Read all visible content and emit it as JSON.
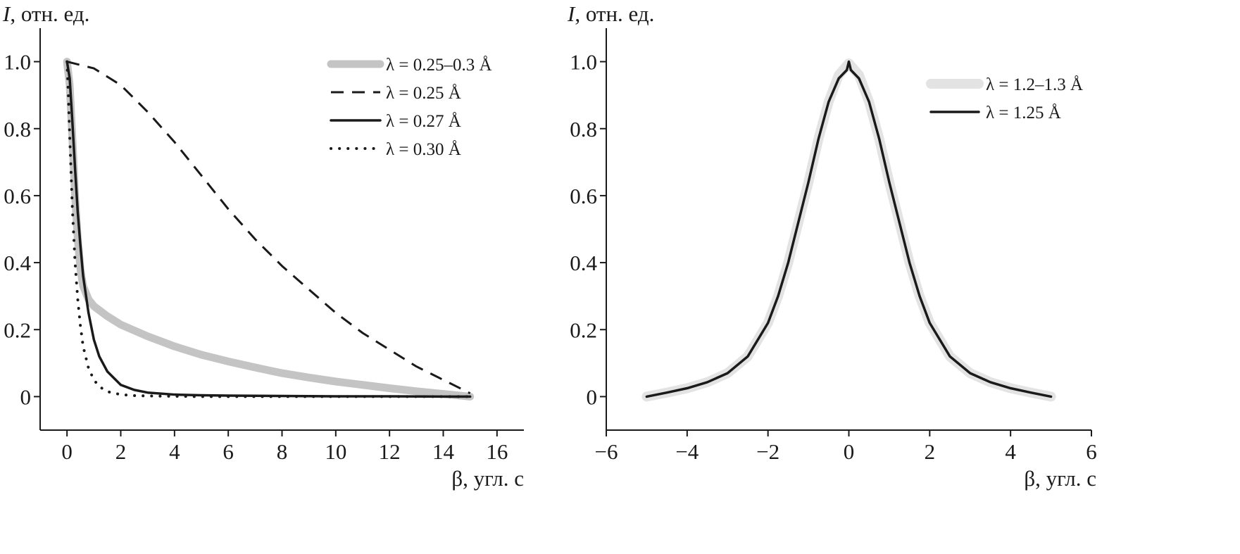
{
  "chart_data": [
    {
      "type": "line",
      "ylabel_italic": "I",
      "ylabel_rest": ", отн. ед.",
      "xlabel": "β, угл. с",
      "xlim": [
        -1,
        17
      ],
      "ylim": [
        -0.1,
        1.1
      ],
      "xticks": [
        0,
        2,
        4,
        6,
        8,
        10,
        12,
        14,
        16
      ],
      "xtick_labels": [
        "0",
        "2",
        "4",
        "6",
        "8",
        "10",
        "12",
        "14",
        "16"
      ],
      "yticks": [
        0,
        0.2,
        0.4,
        0.6,
        0.8,
        1.0
      ],
      "ytick_labels": [
        "0",
        "0.2",
        "0.4",
        "0.6",
        "0.8",
        "1.0"
      ],
      "legend_position": "top-right",
      "grid": false,
      "series": [
        {
          "name": "λ = 0.25–0.3 Å",
          "style": "thick-gray",
          "color": "#c4c4c4",
          "x": [
            0,
            0.1,
            0.2,
            0.3,
            0.4,
            0.5,
            0.6,
            0.8,
            1.0,
            1.5,
            2,
            3,
            4,
            5,
            6,
            7,
            8,
            9,
            10,
            11,
            12,
            13,
            14,
            15
          ],
          "y": [
            1.0,
            0.93,
            0.77,
            0.6,
            0.47,
            0.38,
            0.33,
            0.29,
            0.27,
            0.24,
            0.215,
            0.18,
            0.15,
            0.125,
            0.105,
            0.087,
            0.07,
            0.057,
            0.045,
            0.035,
            0.025,
            0.016,
            0.008,
            0.0
          ]
        },
        {
          "name": "λ = 0.25 Å",
          "style": "dashed",
          "color": "#1a1a1a",
          "x": [
            0,
            1,
            2,
            3,
            4,
            5,
            6,
            7,
            8,
            9,
            10,
            11,
            12,
            13,
            14,
            15
          ],
          "y": [
            1.0,
            0.98,
            0.93,
            0.85,
            0.76,
            0.66,
            0.56,
            0.47,
            0.39,
            0.32,
            0.25,
            0.19,
            0.14,
            0.09,
            0.05,
            0.01
          ]
        },
        {
          "name": "λ = 0.27 Å",
          "style": "solid",
          "color": "#1a1a1a",
          "x": [
            0,
            0.1,
            0.2,
            0.3,
            0.4,
            0.5,
            0.6,
            0.8,
            1.0,
            1.2,
            1.5,
            2,
            2.5,
            3,
            4,
            5,
            6,
            8,
            10,
            12,
            14,
            15
          ],
          "y": [
            1.0,
            0.95,
            0.82,
            0.68,
            0.55,
            0.45,
            0.36,
            0.25,
            0.17,
            0.12,
            0.075,
            0.035,
            0.02,
            0.012,
            0.006,
            0.004,
            0.003,
            0.002,
            0.001,
            0.001,
            0.0,
            0.0
          ]
        },
        {
          "name": "λ = 0.30 Å",
          "style": "dotted",
          "color": "#1a1a1a",
          "x": [
            0,
            0.05,
            0.1,
            0.2,
            0.3,
            0.4,
            0.5,
            0.6,
            0.8,
            1.0,
            1.2,
            1.5,
            2,
            2.5,
            3,
            4,
            5,
            6,
            8,
            10,
            12,
            14,
            15
          ],
          "y": [
            1.0,
            0.9,
            0.78,
            0.56,
            0.4,
            0.29,
            0.21,
            0.15,
            0.085,
            0.05,
            0.03,
            0.015,
            0.006,
            0.003,
            0.002,
            0.001,
            0.0,
            0.0,
            0.0,
            0.0,
            0.0,
            0.0,
            0.0
          ]
        }
      ]
    },
    {
      "type": "line",
      "ylabel_italic": "I",
      "ylabel_rest": ", отн. ед.",
      "xlabel": "β, угл. с",
      "xlim": [
        -6,
        6
      ],
      "ylim": [
        -0.1,
        1.1
      ],
      "xticks": [
        -6,
        -4,
        -2,
        0,
        2,
        4,
        6
      ],
      "xtick_labels": [
        "−6",
        "−4",
        "−2",
        "0",
        "2",
        "4",
        "6"
      ],
      "yticks": [
        0,
        0.2,
        0.4,
        0.6,
        0.8,
        1.0
      ],
      "ytick_labels": [
        "0",
        "0.2",
        "0.4",
        "0.6",
        "0.8",
        "1.0"
      ],
      "legend_position": "top-right",
      "grid": false,
      "series": [
        {
          "name": "λ = 1.2–1.3 Å",
          "style": "thick-lightgray",
          "color": "#e3e3e3",
          "x": [
            -5,
            -4.5,
            -4,
            -3.5,
            -3,
            -2.5,
            -2,
            -1.75,
            -1.5,
            -1.25,
            -1,
            -0.75,
            -0.5,
            -0.25,
            0,
            0.25,
            0.5,
            0.75,
            1,
            1.25,
            1.5,
            1.75,
            2,
            2.5,
            3,
            3.5,
            4,
            4.5,
            5
          ],
          "y": [
            0.0,
            0.012,
            0.025,
            0.043,
            0.07,
            0.12,
            0.22,
            0.3,
            0.4,
            0.52,
            0.64,
            0.77,
            0.88,
            0.96,
            0.995,
            0.96,
            0.88,
            0.77,
            0.64,
            0.52,
            0.4,
            0.3,
            0.22,
            0.12,
            0.07,
            0.043,
            0.025,
            0.012,
            0.0
          ]
        },
        {
          "name": "λ = 1.25 Å",
          "style": "solid",
          "color": "#1a1a1a",
          "x": [
            -5,
            -4.5,
            -4,
            -3.5,
            -3,
            -2.5,
            -2,
            -1.75,
            -1.5,
            -1.25,
            -1,
            -0.75,
            -0.5,
            -0.25,
            -0.05,
            0,
            0.05,
            0.25,
            0.5,
            0.75,
            1,
            1.25,
            1.5,
            1.75,
            2,
            2.5,
            3,
            3.5,
            4,
            4.5,
            5
          ],
          "y": [
            0.0,
            0.012,
            0.025,
            0.043,
            0.07,
            0.12,
            0.22,
            0.3,
            0.4,
            0.52,
            0.64,
            0.77,
            0.88,
            0.95,
            0.975,
            1.0,
            0.975,
            0.95,
            0.88,
            0.77,
            0.64,
            0.52,
            0.4,
            0.3,
            0.22,
            0.12,
            0.07,
            0.043,
            0.025,
            0.012,
            0.0
          ]
        }
      ]
    }
  ]
}
